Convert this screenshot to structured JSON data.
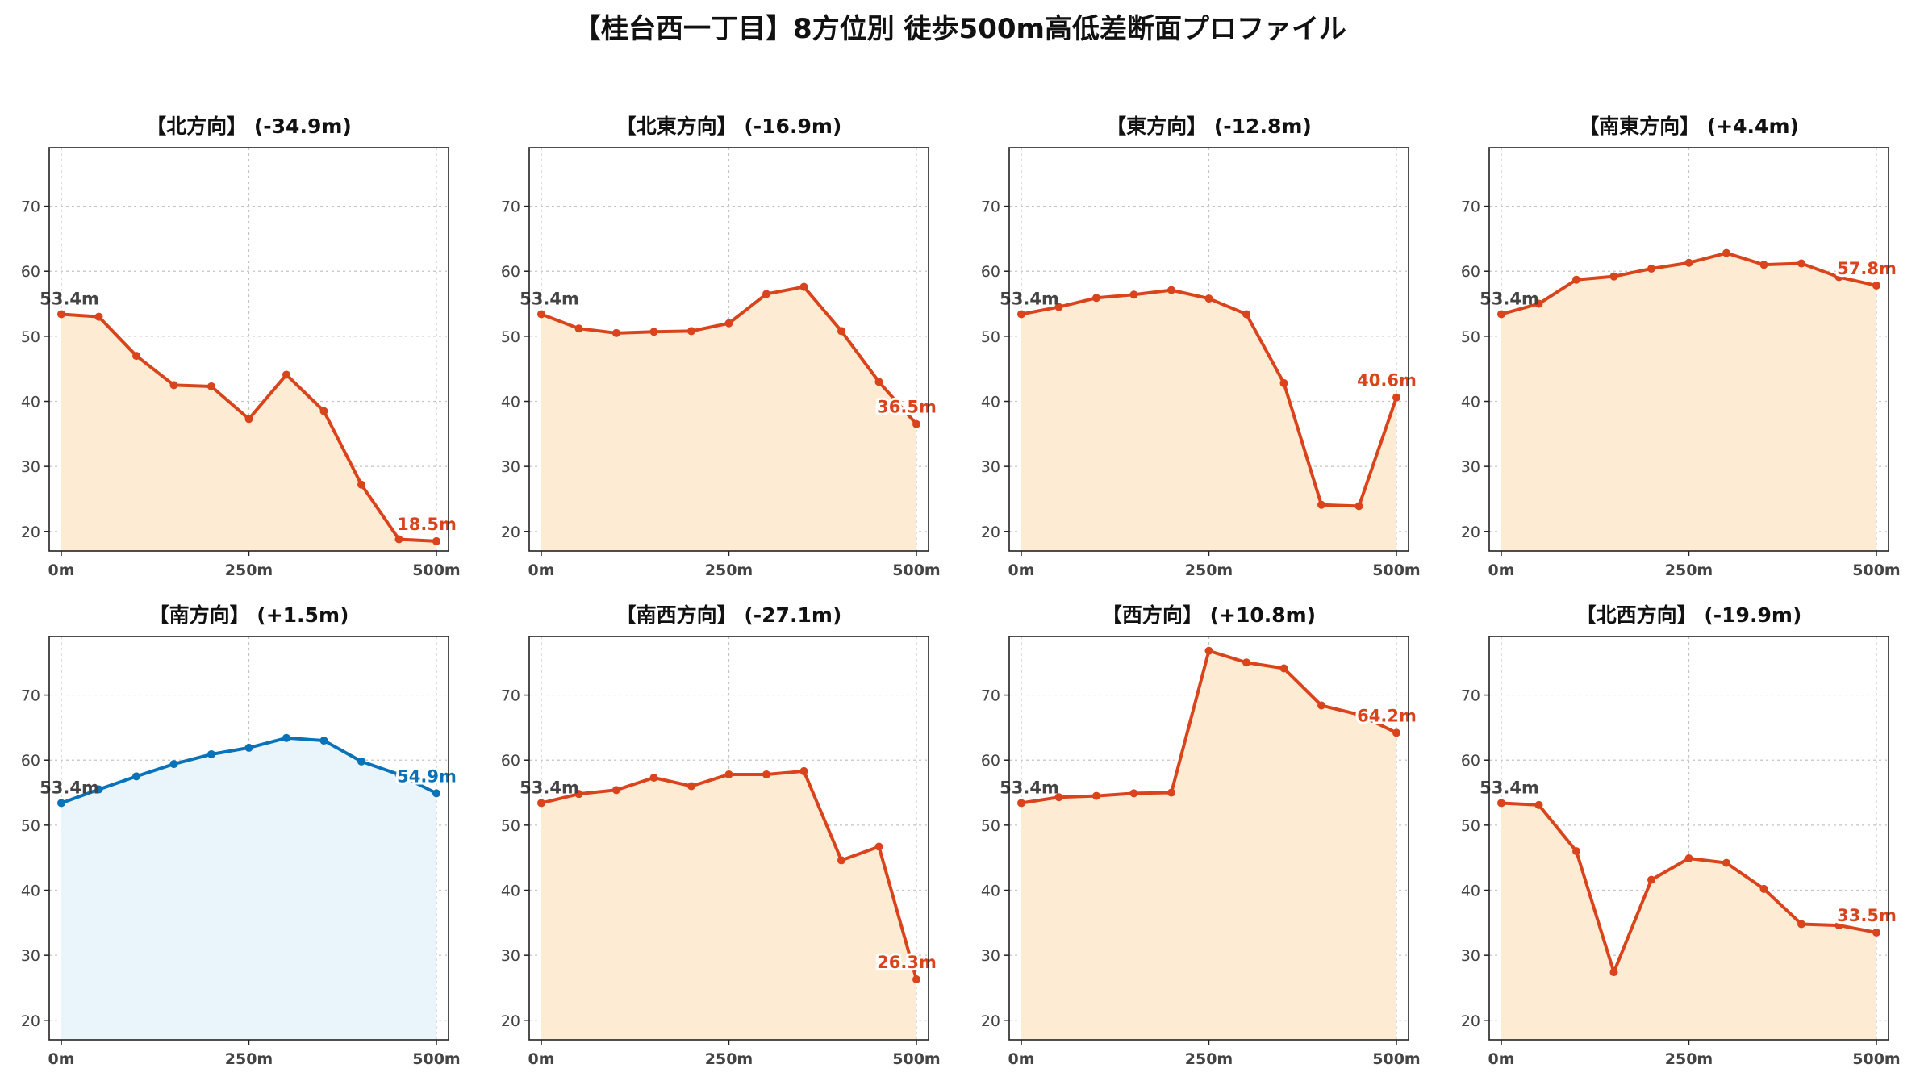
{
  "title": "【桂台西一丁目】8方位別 徒歩500m高低差断面プロファイル",
  "colors": {
    "down_line": "#d9441c",
    "down_fill": "#fdecd3",
    "up_line": "#0a72b8",
    "up_fill": "#e9f5fb",
    "grid": "#c4c4c4",
    "axis": "#222222",
    "start_label": "#444444"
  },
  "chart_data": [
    {
      "type": "line",
      "title": "【北方向】 (-34.9m)",
      "style": "down",
      "x": [
        0,
        50,
        100,
        150,
        200,
        250,
        300,
        350,
        400,
        450,
        500
      ],
      "y": [
        53.4,
        53.0,
        47.0,
        42.5,
        42.3,
        37.3,
        44.1,
        38.5,
        27.2,
        18.8,
        18.5
      ],
      "start_label": "53.4m",
      "end_label": "18.5m",
      "xticks": [
        "0m",
        "250m",
        "500m"
      ],
      "yticks": [
        "20",
        "30",
        "40",
        "50",
        "60",
        "70"
      ],
      "xlim": [
        0,
        500
      ],
      "ylim": [
        17,
        79
      ],
      "grid": true
    },
    {
      "type": "line",
      "title": "【北東方向】 (-16.9m)",
      "style": "down",
      "x": [
        0,
        50,
        100,
        150,
        200,
        250,
        300,
        350,
        400,
        450,
        500
      ],
      "y": [
        53.4,
        51.2,
        50.5,
        50.7,
        50.8,
        52.0,
        56.5,
        57.6,
        50.8,
        43.0,
        36.5
      ],
      "start_label": "53.4m",
      "end_label": "36.5m",
      "xticks": [
        "0m",
        "250m",
        "500m"
      ],
      "yticks": [
        "20",
        "30",
        "40",
        "50",
        "60",
        "70"
      ],
      "xlim": [
        0,
        500
      ],
      "ylim": [
        17,
        79
      ],
      "grid": true
    },
    {
      "type": "line",
      "title": "【東方向】 (-12.8m)",
      "style": "down",
      "x": [
        0,
        50,
        100,
        150,
        200,
        250,
        300,
        350,
        400,
        450,
        500
      ],
      "y": [
        53.4,
        54.5,
        55.9,
        56.4,
        57.1,
        55.8,
        53.4,
        42.8,
        24.1,
        23.9,
        40.6
      ],
      "start_label": "53.4m",
      "end_label": "40.6m",
      "xticks": [
        "0m",
        "250m",
        "500m"
      ],
      "yticks": [
        "20",
        "30",
        "40",
        "50",
        "60",
        "70"
      ],
      "xlim": [
        0,
        500
      ],
      "ylim": [
        17,
        79
      ],
      "grid": true
    },
    {
      "type": "line",
      "title": "【南東方向】 (+4.4m)",
      "style": "down",
      "x": [
        0,
        50,
        100,
        150,
        200,
        250,
        300,
        350,
        400,
        450,
        500
      ],
      "y": [
        53.4,
        55.0,
        58.7,
        59.2,
        60.4,
        61.3,
        62.8,
        61.0,
        61.2,
        59.1,
        57.8
      ],
      "start_label": "53.4m",
      "end_label": "57.8m",
      "xticks": [
        "0m",
        "250m",
        "500m"
      ],
      "yticks": [
        "20",
        "30",
        "40",
        "50",
        "60",
        "70"
      ],
      "xlim": [
        0,
        500
      ],
      "ylim": [
        17,
        79
      ],
      "grid": true
    },
    {
      "type": "line",
      "title": "【南方向】 (+1.5m)",
      "style": "up",
      "x": [
        0,
        50,
        100,
        150,
        200,
        250,
        300,
        350,
        400,
        450,
        500
      ],
      "y": [
        53.4,
        55.5,
        57.5,
        59.4,
        60.9,
        61.9,
        63.4,
        63.0,
        59.8,
        57.8,
        54.9
      ],
      "start_label": "53.4m",
      "end_label": "54.9m",
      "xticks": [
        "0m",
        "250m",
        "500m"
      ],
      "yticks": [
        "20",
        "30",
        "40",
        "50",
        "60",
        "70"
      ],
      "xlim": [
        0,
        500
      ],
      "ylim": [
        17,
        79
      ],
      "grid": true
    },
    {
      "type": "line",
      "title": "【南西方向】 (-27.1m)",
      "style": "down",
      "x": [
        0,
        50,
        100,
        150,
        200,
        250,
        300,
        350,
        400,
        450,
        500
      ],
      "y": [
        53.4,
        54.8,
        55.4,
        57.3,
        56.0,
        57.8,
        57.8,
        58.3,
        44.6,
        46.7,
        26.3
      ],
      "start_label": "53.4m",
      "end_label": "26.3m",
      "xticks": [
        "0m",
        "250m",
        "500m"
      ],
      "yticks": [
        "20",
        "30",
        "40",
        "50",
        "60",
        "70"
      ],
      "xlim": [
        0,
        500
      ],
      "ylim": [
        17,
        79
      ],
      "grid": true
    },
    {
      "type": "line",
      "title": "【西方向】 (+10.8m)",
      "style": "down",
      "x": [
        0,
        50,
        100,
        150,
        200,
        250,
        300,
        350,
        400,
        450,
        500
      ],
      "y": [
        53.4,
        54.3,
        54.5,
        54.9,
        55.0,
        76.8,
        75.0,
        74.1,
        68.4,
        67.0,
        64.2
      ],
      "start_label": "53.4m",
      "end_label": "64.2m",
      "xticks": [
        "0m",
        "250m",
        "500m"
      ],
      "yticks": [
        "20",
        "30",
        "40",
        "50",
        "60",
        "70"
      ],
      "xlim": [
        0,
        500
      ],
      "ylim": [
        17,
        79
      ],
      "grid": true
    },
    {
      "type": "line",
      "title": "【北西方向】 (-19.9m)",
      "style": "down",
      "x": [
        0,
        50,
        100,
        150,
        200,
        250,
        300,
        350,
        400,
        450,
        500
      ],
      "y": [
        53.4,
        53.1,
        46.0,
        27.4,
        41.6,
        44.9,
        44.2,
        40.2,
        34.8,
        34.6,
        33.5
      ],
      "start_label": "53.4m",
      "end_label": "33.5m",
      "xticks": [
        "0m",
        "250m",
        "500m"
      ],
      "yticks": [
        "20",
        "30",
        "40",
        "50",
        "60",
        "70"
      ],
      "xlim": [
        0,
        500
      ],
      "ylim": [
        17,
        79
      ],
      "grid": true
    }
  ]
}
